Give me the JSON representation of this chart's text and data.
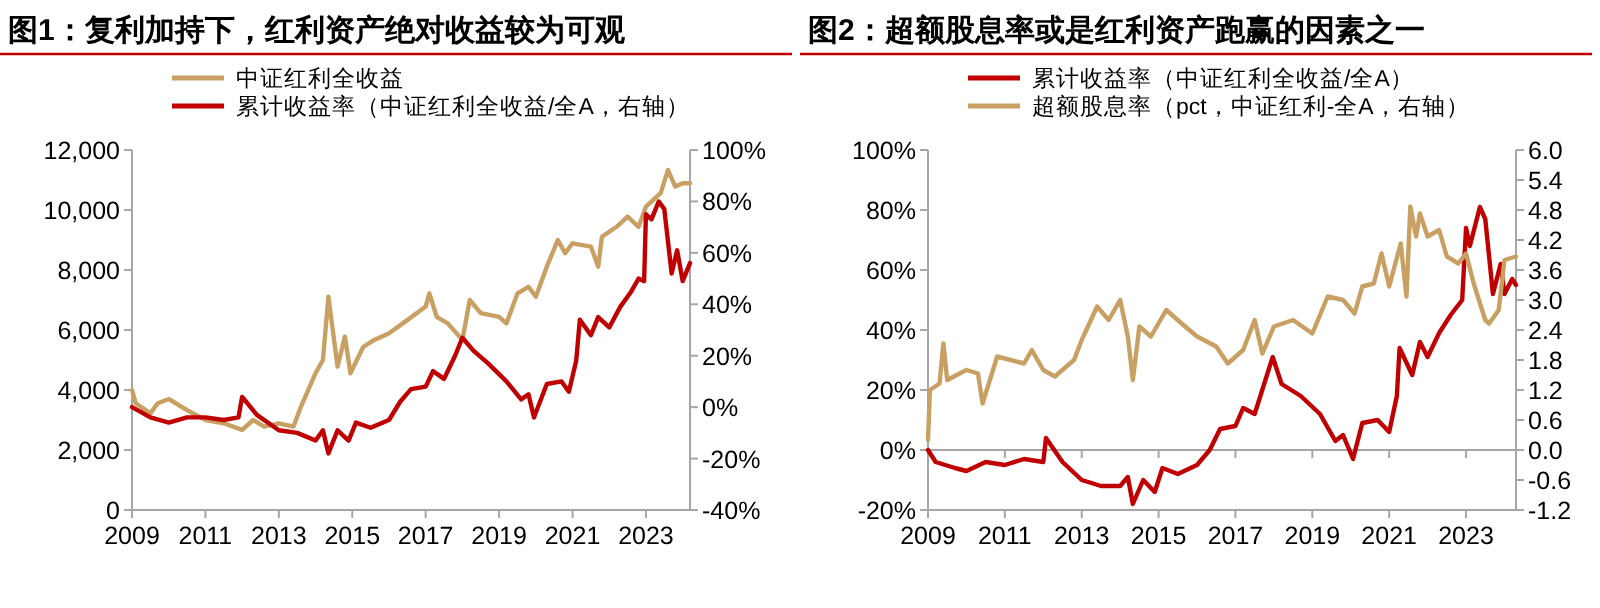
{
  "chart_data": [
    {
      "type": "line",
      "title": "图1：复利加持下，红利资产绝对收益较为可观",
      "legend": "top left",
      "grid": false,
      "xlim": [
        2009,
        2024.2
      ],
      "xticks": [
        2009,
        2011,
        2013,
        2015,
        2017,
        2019,
        2021,
        2023
      ],
      "ylim": [
        0,
        12000
      ],
      "yticks": [
        0,
        {
          "value": 2000,
          "label": "2,000"
        },
        {
          "value": 4000,
          "label": "4,000"
        },
        {
          "value": 6000,
          "label": "6,000"
        },
        {
          "value": 8000,
          "label": "8,000"
        },
        {
          "value": 10000,
          "label": "10,000"
        },
        {
          "value": 12000,
          "label": "12,000"
        }
      ],
      "y2lim": [
        -40,
        100
      ],
      "y2ticks": [
        {
          "value": -40,
          "label": "-40%"
        },
        {
          "value": -20,
          "label": "-20%"
        },
        {
          "value": 0,
          "label": "0%"
        },
        {
          "value": 20,
          "label": "20%"
        },
        {
          "value": 40,
          "label": "40%"
        },
        {
          "value": 60,
          "label": "60%"
        },
        {
          "value": 80,
          "label": "80%"
        },
        {
          "value": 100,
          "label": "100%"
        }
      ],
      "series": [
        {
          "name": "中证红利全收益",
          "color": "#c9a063",
          "x": [
            2009.0,
            2009.1,
            2009.5,
            2009.7,
            2010.0,
            2010.5,
            2011.0,
            2011.5,
            2012.0,
            2012.3,
            2012.6,
            2013.0,
            2013.4,
            2013.6,
            2014.0,
            2014.2,
            2014.35,
            2014.6,
            2014.8,
            2014.95,
            2015.3,
            2015.6,
            2016.0,
            2016.5,
            2017.0,
            2017.1,
            2017.3,
            2017.6,
            2018.0,
            2018.2,
            2018.5,
            2019.0,
            2019.2,
            2019.5,
            2019.8,
            2020.0,
            2020.3,
            2020.6,
            2020.8,
            2021.0,
            2021.5,
            2021.7,
            2021.8,
            2022.2,
            2022.5,
            2022.8,
            2023.0,
            2023.4,
            2023.6,
            2023.8,
            2024.0,
            2024.2
          ],
          "values": [
            4000,
            3560,
            3220,
            3560,
            3700,
            3330,
            3000,
            2890,
            2670,
            3000,
            2780,
            2890,
            2780,
            3440,
            4560,
            5000,
            7110,
            4780,
            5780,
            4560,
            5440,
            5670,
            5890,
            6330,
            6780,
            7220,
            6440,
            6220,
            5670,
            7000,
            6560,
            6440,
            6220,
            7220,
            7440,
            7110,
            8110,
            9000,
            8560,
            8890,
            8780,
            8110,
            9110,
            9440,
            9780,
            9440,
            10110,
            10560,
            11330,
            10780,
            10890,
            10890
          ]
        },
        {
          "name": "累计收益率（中证红利全收益/全A，右轴）",
          "color": "#c00000",
          "axis": "y2",
          "x": [
            2009.0,
            2009.5,
            2010.0,
            2010.5,
            2011.0,
            2011.5,
            2011.9,
            2012.0,
            2012.4,
            2013.0,
            2013.5,
            2014.0,
            2014.2,
            2014.35,
            2014.6,
            2014.9,
            2015.1,
            2015.5,
            2016.0,
            2016.3,
            2016.6,
            2017.0,
            2017.2,
            2017.5,
            2017.8,
            2018.0,
            2018.3,
            2018.7,
            2019.2,
            2019.6,
            2019.8,
            2019.95,
            2020.3,
            2020.7,
            2020.9,
            2021.1,
            2021.2,
            2021.5,
            2021.7,
            2022.0,
            2022.3,
            2022.6,
            2022.8,
            2022.95,
            2023.0,
            2023.15,
            2023.35,
            2023.5,
            2023.7,
            2023.85,
            2024.0,
            2024.2
          ],
          "values": [
            0,
            -4,
            -6,
            -4,
            -4,
            -5,
            -4,
            4,
            -3,
            -9,
            -10,
            -13,
            -9,
            -18,
            -9,
            -13,
            -6,
            -8,
            -5,
            2,
            7,
            8,
            14,
            11,
            20,
            27,
            22,
            17,
            10,
            3,
            5,
            -4,
            9,
            10,
            6,
            18,
            34,
            28,
            35,
            31,
            39,
            45,
            50,
            49,
            75,
            73,
            80,
            77,
            52,
            61,
            49,
            56
          ]
        }
      ]
    },
    {
      "type": "line",
      "title": "图2：超额股息率或是红利资产跑赢的因素之一",
      "legend": "top left",
      "grid": false,
      "xlim": [
        2009,
        2024.3
      ],
      "xticks": [
        2009,
        2011,
        2013,
        2015,
        2017,
        2019,
        2021,
        2023
      ],
      "ylim": [
        -20,
        100
      ],
      "yticks": [
        {
          "value": -20,
          "label": "-20%"
        },
        {
          "value": 0,
          "label": "0%"
        },
        {
          "value": 20,
          "label": "20%"
        },
        {
          "value": 40,
          "label": "40%"
        },
        {
          "value": 60,
          "label": "60%"
        },
        {
          "value": 80,
          "label": "80%"
        },
        {
          "value": 100,
          "label": "100%"
        }
      ],
      "y2lim": [
        -1.2,
        6.0
      ],
      "y2ticks": [
        {
          "value": -1.2,
          "label": "-1.2"
        },
        {
          "value": -0.6,
          "label": "-0.6"
        },
        {
          "value": 0,
          "label": "0.0"
        },
        {
          "value": 0.6,
          "label": "0.6"
        },
        {
          "value": 1.2,
          "label": "1.2"
        },
        {
          "value": 1.8,
          "label": "1.8"
        },
        {
          "value": 2.4,
          "label": "2.4"
        },
        {
          "value": 3.0,
          "label": "3.0"
        },
        {
          "value": 3.6,
          "label": "3.6"
        },
        {
          "value": 4.2,
          "label": "4.2"
        },
        {
          "value": 4.8,
          "label": "4.8"
        },
        {
          "value": 5.4,
          "label": "5.4"
        },
        {
          "value": 6.0,
          "label": "6.0"
        }
      ],
      "ref_lines": [
        {
          "axis": "y",
          "value": 0,
          "color": "#a6a6a6"
        }
      ],
      "series": [
        {
          "name": "累计收益率（中证红利全收益/全A）",
          "color": "#c00000",
          "x": [
            2009.0,
            2009.2,
            2009.7,
            2010.0,
            2010.5,
            2011.0,
            2011.5,
            2012.0,
            2012.07,
            2012.5,
            2013.0,
            2013.5,
            2014.0,
            2014.2,
            2014.33,
            2014.6,
            2014.9,
            2015.1,
            2015.5,
            2016.0,
            2016.33,
            2016.6,
            2017.0,
            2017.2,
            2017.5,
            2017.97,
            2018.2,
            2018.7,
            2019.2,
            2019.6,
            2019.8,
            2020.06,
            2020.3,
            2020.7,
            2021.0,
            2021.2,
            2021.27,
            2021.6,
            2021.8,
            2022.0,
            2022.3,
            2022.6,
            2022.9,
            2023.0,
            2023.1,
            2023.36,
            2023.5,
            2023.7,
            2023.9,
            2024.0,
            2024.2,
            2024.3
          ],
          "values": [
            0,
            -4,
            -6,
            -7,
            -4,
            -5,
            -3,
            -4,
            4,
            -4,
            -10,
            -12,
            -12,
            -9,
            -18,
            -10,
            -14,
            -6,
            -8,
            -5,
            0,
            7,
            8,
            14,
            12,
            31,
            22,
            18,
            12,
            3,
            5,
            -3,
            9,
            10,
            6,
            18,
            34,
            25,
            36,
            31,
            39,
            45,
            50,
            74,
            68,
            81,
            77,
            52,
            62,
            52,
            57,
            55
          ]
        },
        {
          "name": "超额股息率（pct，中证红利-全A，右轴）",
          "color": "#c9a063",
          "axis": "y2",
          "x": [
            2009.0,
            2009.05,
            2009.3,
            2009.4,
            2009.5,
            2010.0,
            2010.3,
            2010.42,
            2010.8,
            2011.0,
            2011.5,
            2011.7,
            2012.0,
            2012.3,
            2012.8,
            2013.0,
            2013.4,
            2013.7,
            2014.0,
            2014.2,
            2014.33,
            2014.5,
            2014.8,
            2015.2,
            2015.6,
            2016.0,
            2016.5,
            2016.8,
            2017.2,
            2017.5,
            2017.7,
            2018.0,
            2018.5,
            2019.0,
            2019.4,
            2019.8,
            2020.1,
            2020.3,
            2020.6,
            2020.8,
            2021.0,
            2021.3,
            2021.45,
            2021.55,
            2021.7,
            2021.8,
            2022.0,
            2022.3,
            2022.5,
            2022.8,
            2023.0,
            2023.2,
            2023.5,
            2023.6,
            2023.85,
            2024.0,
            2024.3
          ],
          "values": [
            0.2,
            1.2,
            1.33,
            2.13,
            1.4,
            1.6,
            1.53,
            0.93,
            1.87,
            1.83,
            1.73,
            2.0,
            1.6,
            1.47,
            1.8,
            2.2,
            2.87,
            2.6,
            3.0,
            2.27,
            1.4,
            2.47,
            2.27,
            2.8,
            2.53,
            2.27,
            2.07,
            1.73,
            2.0,
            2.6,
            1.93,
            2.47,
            2.6,
            2.33,
            3.07,
            3.0,
            2.73,
            3.27,
            3.33,
            3.93,
            3.27,
            4.13,
            3.07,
            4.87,
            4.27,
            4.73,
            4.27,
            4.4,
            3.87,
            3.73,
            3.93,
            3.33,
            2.6,
            2.53,
            2.8,
            3.8,
            3.87
          ]
        }
      ]
    }
  ]
}
